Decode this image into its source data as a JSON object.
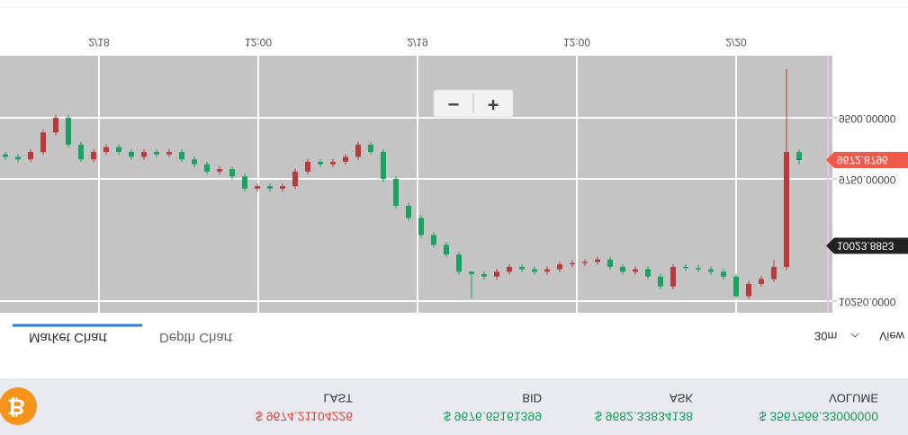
{
  "header": {
    "coin_symbol": "₿",
    "stats": [
      {
        "label": "LAST",
        "value": "$ 9674.21104226",
        "color": "#e0453a"
      },
      {
        "label": "BID",
        "value": "$ 9676.65161399",
        "color": "#14a05a"
      },
      {
        "label": "ASK",
        "value": "$ 9682.33834138",
        "color": "#14a05a"
      },
      {
        "label": "VOLUME",
        "value": "$ 3567566.33000000",
        "color": "#14a05a"
      }
    ]
  },
  "tabs": [
    "Market Chart",
    "Depth Chart"
  ],
  "interval": "30m",
  "view": "View",
  "zoom_out": "−",
  "zoom_in": "+",
  "chart_data": {
    "type": "candlestick",
    "grid": true,
    "up_color": "#1aa260",
    "down_color": "#b83a3a",
    "x_labels": [
      "2/18",
      "12:00",
      "2/19",
      "12:00",
      "2/20"
    ],
    "open": [
      9650,
      9660,
      9670,
      9640,
      9560,
      9500,
      9610,
      9670,
      9640,
      9620,
      9640,
      9660,
      9640,
      9650,
      9640,
      9670,
      9690,
      9720,
      9710,
      9740,
      9790,
      9780,
      9790,
      9780,
      9720,
      9680,
      9690,
      9680,
      9660,
      9610,
      9640,
      9750,
      9860,
      9910,
      9980,
      10020,
      10060,
      10130,
      10140,
      10150,
      10130,
      10110,
      10120,
      10130,
      10120,
      10100,
      10095,
      10090,
      10080,
      10110,
      10130,
      10120,
      10150,
      10190,
      10110,
      10115,
      10120,
      10130,
      10150,
      10230,
      10180,
      10160,
      10110,
      9640
    ],
    "high": [
      9672,
      9682,
      9682,
      9652,
      9572,
      9622,
      9682,
      9682,
      9652,
      9652,
      9672,
      9672,
      9662,
      9662,
      9682,
      9702,
      9732,
      9732,
      9752,
      9802,
      9802,
      9802,
      9802,
      9792,
      9732,
      9702,
      9702,
      9692,
      9672,
      9652,
      9762,
      9872,
      9922,
      9992,
      10032,
      10072,
      10142,
      10240,
      10162,
      10162,
      10142,
      10132,
      10142,
      10142,
      10132,
      10112,
      10107,
      10102,
      10122,
      10142,
      10142,
      10162,
      10202,
      10202,
      10127,
      10132,
      10142,
      10162,
      10242,
      10242,
      10192,
      10172,
      10122,
      9690
    ],
    "low": [
      9638,
      9648,
      9628,
      9548,
      9488,
      9488,
      9598,
      9628,
      9608,
      9608,
      9628,
      9628,
      9628,
      9628,
      9628,
      9658,
      9678,
      9698,
      9698,
      9728,
      9768,
      9768,
      9768,
      9708,
      9668,
      9668,
      9668,
      9648,
      9598,
      9598,
      9628,
      9738,
      9848,
      9898,
      9968,
      10008,
      10048,
      10128,
      10128,
      10118,
      10098,
      10098,
      10108,
      10108,
      10088,
      10083,
      10078,
      10068,
      10068,
      10098,
      10108,
      10108,
      10138,
      10098,
      10098,
      10103,
      10108,
      10118,
      10138,
      10168,
      10148,
      10080,
      9300,
      9630
    ],
    "close": [
      9660,
      9670,
      9640,
      9560,
      9500,
      9610,
      9670,
      9640,
      9620,
      9640,
      9660,
      9640,
      9650,
      9640,
      9670,
      9690,
      9720,
      9710,
      9740,
      9790,
      9780,
      9790,
      9780,
      9720,
      9680,
      9690,
      9680,
      9660,
      9610,
      9640,
      9750,
      9860,
      9910,
      9980,
      10020,
      10060,
      10130,
      10140,
      10150,
      10130,
      10110,
      10120,
      10130,
      10120,
      10100,
      10095,
      10090,
      10080,
      10110,
      10130,
      10120,
      10150,
      10190,
      10110,
      10115,
      10120,
      10130,
      10150,
      10230,
      10180,
      10160,
      10110,
      9640,
      9672.8796
    ],
    "ylim": [
      9246,
      10298
    ],
    "yticks": [
      {
        "value": 9500,
        "label": "9500.00000"
      },
      {
        "value": 9750,
        "label": "9750.00000"
      },
      {
        "value": 10250,
        "label": "10250.0000"
      }
    ],
    "price_tags": [
      {
        "value": 9672.8796,
        "color": "#ef5a4b"
      },
      {
        "value": 10023.8853,
        "color": "#222222"
      }
    ]
  }
}
